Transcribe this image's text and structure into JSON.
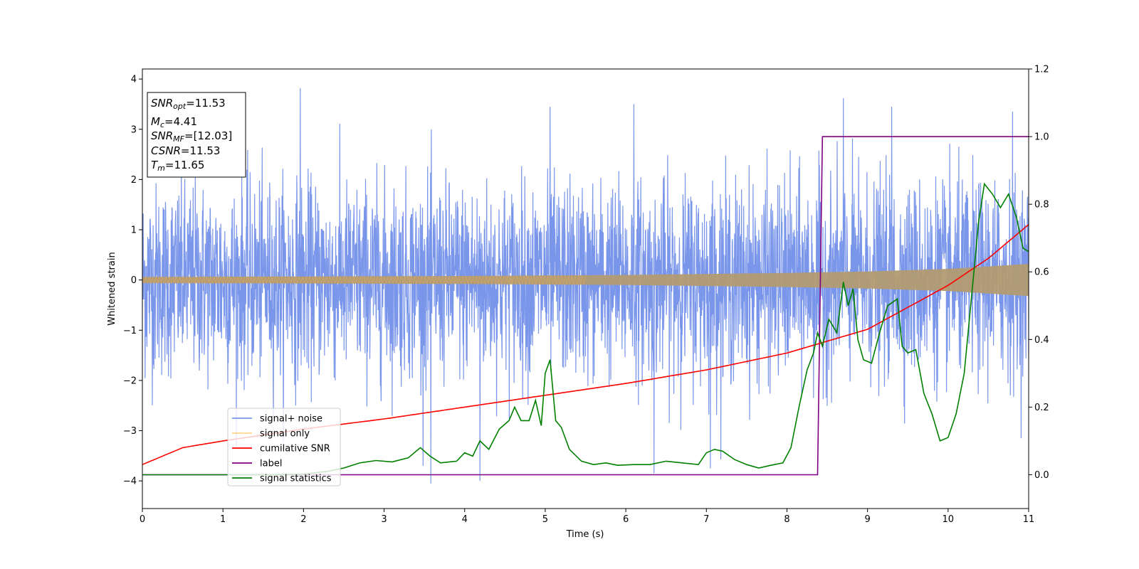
{
  "chart_data": {
    "type": "line",
    "xlabel": "Time (s)",
    "ylabel": "Whitened strain",
    "xlim": [
      0,
      11
    ],
    "ylim": [
      -4.55,
      4.2
    ],
    "y2lim": [
      -0.1,
      1.2
    ],
    "xticks": [
      "0",
      "1",
      "2",
      "3",
      "4",
      "5",
      "6",
      "7",
      "8",
      "9",
      "10",
      "11"
    ],
    "yticks": [
      "−4",
      "−3",
      "−2",
      "−1",
      "0",
      "1",
      "2",
      "3",
      "4"
    ],
    "y2ticks": [
      "0.0",
      "0.2",
      "0.4",
      "0.6",
      "0.8",
      "1.0",
      "1.2"
    ],
    "grid": false,
    "legend_position": "lower-left",
    "annotation_lines": [
      {
        "base": "SNR",
        "sub": "opt",
        "value": "=11.53"
      },
      {
        "base": "M",
        "sub": "c",
        "value": "=4.41"
      },
      {
        "base": "SNR",
        "sub": "MF",
        "value": "=[12.03]"
      },
      {
        "base": "CSNR",
        "sub": "",
        "value": "=11.53"
      },
      {
        "base": "T",
        "sub": "m",
        "value": "=11.65"
      }
    ],
    "series": [
      {
        "name": "signal+ noise",
        "axis": "left",
        "color": "#4169e1",
        "description_values": "whitened noisy strain, approx. range -4.05 to 3.82 with peaks ~3.8 near t=1.96 and ~3.6 near t=8.7",
        "peaks": [
          [
            1.96,
            3.82
          ],
          [
            8.7,
            3.62
          ],
          [
            10.8,
            3.35
          ],
          [
            9.3,
            3.45
          ],
          [
            5.06,
            3.45
          ],
          [
            6.1,
            3.5
          ],
          [
            3.58,
            -4.05
          ],
          [
            4.19,
            -4.0
          ],
          [
            6.35,
            -3.85
          ],
          [
            7.05,
            -3.75
          ]
        ]
      },
      {
        "name": "signal only",
        "axis": "left",
        "color": "#ffa500",
        "envelope": {
          "x": [
            0,
            2,
            4,
            6,
            8,
            9,
            10,
            11
          ],
          "amp": [
            0.06,
            0.07,
            0.08,
            0.1,
            0.14,
            0.17,
            0.22,
            0.32
          ]
        }
      },
      {
        "name": "cumilative SNR",
        "axis": "right",
        "color": "#ff0000",
        "x": [
          0,
          0.5,
          1,
          2,
          3,
          4,
          5,
          6,
          7,
          8,
          9,
          10,
          10.5,
          11
        ],
        "values": [
          0.03,
          0.08,
          0.1,
          0.135,
          0.165,
          0.2,
          0.235,
          0.27,
          0.31,
          0.36,
          0.43,
          0.56,
          0.64,
          0.74
        ]
      },
      {
        "name": "label",
        "axis": "right",
        "color": "#800080",
        "x": [
          0,
          8.38,
          8.44,
          11
        ],
        "values": [
          0,
          0,
          1,
          1
        ]
      },
      {
        "name": "signal statistics",
        "axis": "right",
        "color": "#008000",
        "x": [
          0,
          0.5,
          1,
          1.5,
          2,
          2.3,
          2.5,
          2.7,
          2.9,
          3.1,
          3.3,
          3.45,
          3.57,
          3.7,
          3.9,
          4.0,
          4.1,
          4.19,
          4.3,
          4.43,
          4.55,
          4.62,
          4.7,
          4.8,
          4.88,
          4.95,
          5.0,
          5.06,
          5.13,
          5.2,
          5.3,
          5.45,
          5.6,
          5.75,
          5.9,
          6.1,
          6.3,
          6.5,
          6.7,
          6.9,
          7.0,
          7.1,
          7.2,
          7.35,
          7.5,
          7.65,
          7.8,
          7.95,
          8.05,
          8.15,
          8.25,
          8.33,
          8.38,
          8.44,
          8.52,
          8.62,
          8.7,
          8.76,
          8.82,
          8.88,
          8.95,
          9.05,
          9.15,
          9.25,
          9.37,
          9.43,
          9.5,
          9.6,
          9.7,
          9.8,
          9.9,
          10.0,
          10.1,
          10.2,
          10.3,
          10.38,
          10.45,
          10.55,
          10.65,
          10.75,
          10.85,
          10.93,
          11.0
        ],
        "values": [
          0.0,
          0.0,
          0.0,
          0.0,
          0.002,
          0.01,
          0.02,
          0.035,
          0.042,
          0.038,
          0.05,
          0.08,
          0.055,
          0.035,
          0.04,
          0.065,
          0.055,
          0.1,
          0.075,
          0.135,
          0.16,
          0.2,
          0.16,
          0.16,
          0.22,
          0.145,
          0.3,
          0.34,
          0.16,
          0.14,
          0.075,
          0.04,
          0.03,
          0.035,
          0.028,
          0.03,
          0.03,
          0.04,
          0.035,
          0.03,
          0.065,
          0.075,
          0.07,
          0.045,
          0.03,
          0.02,
          0.028,
          0.035,
          0.08,
          0.2,
          0.31,
          0.36,
          0.42,
          0.38,
          0.46,
          0.42,
          0.57,
          0.5,
          0.55,
          0.4,
          0.34,
          0.33,
          0.42,
          0.5,
          0.52,
          0.38,
          0.36,
          0.37,
          0.24,
          0.18,
          0.1,
          0.11,
          0.18,
          0.3,
          0.55,
          0.75,
          0.86,
          0.83,
          0.79,
          0.83,
          0.76,
          0.67,
          0.66
        ]
      }
    ]
  }
}
